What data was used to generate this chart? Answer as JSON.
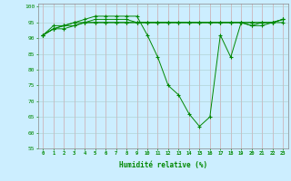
{
  "title": "",
  "xlabel": "Humidité relative (%)",
  "ylabel": "",
  "xlim": [
    -0.5,
    23.5
  ],
  "ylim": [
    55,
    101
  ],
  "yticks": [
    55,
    60,
    65,
    70,
    75,
    80,
    85,
    90,
    95,
    100
  ],
  "xticks": [
    0,
    1,
    2,
    3,
    4,
    5,
    6,
    7,
    8,
    9,
    10,
    11,
    12,
    13,
    14,
    15,
    16,
    17,
    18,
    19,
    20,
    21,
    22,
    23
  ],
  "background_color": "#cceeff",
  "grid_color": "#aacccc",
  "line_color": "#008800",
  "series": [
    [
      91,
      94,
      94,
      95,
      96,
      97,
      97,
      97,
      97,
      97,
      91,
      84,
      75,
      72,
      66,
      62,
      65,
      91,
      84,
      95,
      94,
      95,
      95,
      96
    ],
    [
      91,
      93,
      94,
      95,
      95,
      96,
      96,
      96,
      96,
      95,
      95,
      95,
      95,
      95,
      95,
      95,
      95,
      95,
      95,
      95,
      95,
      95,
      95,
      96
    ],
    [
      91,
      93,
      94,
      94,
      95,
      95,
      95,
      95,
      95,
      95,
      95,
      95,
      95,
      95,
      95,
      95,
      95,
      95,
      95,
      95,
      95,
      95,
      95,
      96
    ],
    [
      91,
      93,
      93,
      94,
      95,
      95,
      95,
      95,
      95,
      95,
      95,
      95,
      95,
      95,
      95,
      95,
      95,
      95,
      95,
      95,
      94,
      94,
      95,
      95
    ]
  ]
}
